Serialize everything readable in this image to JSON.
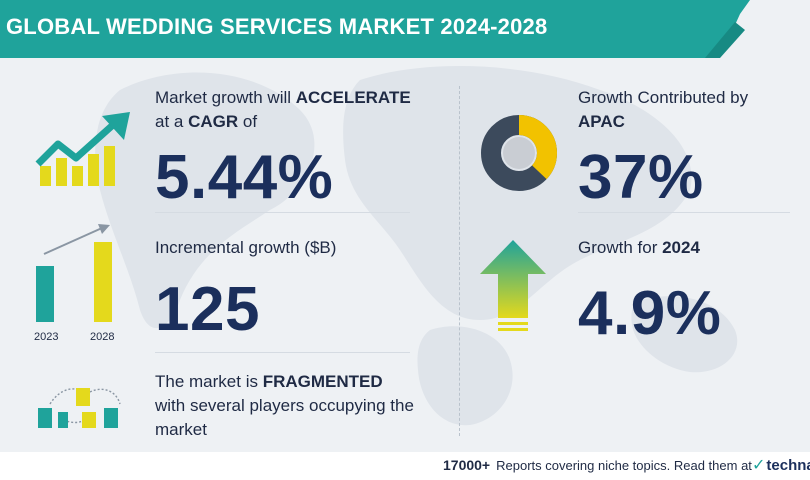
{
  "banner": {
    "title": "GLOBAL WEDDING SERVICES MARKET 2024-2028"
  },
  "cagr": {
    "text_prefix": "Market growth will ",
    "text_emphasis": "ACCELERATE",
    "text_line2_prefix": "at a ",
    "text_line2_emphasis": "CAGR",
    "text_line2_suffix": "  of",
    "value": "5.44%"
  },
  "incremental": {
    "label": "Incremental growth ($B)",
    "value": "125",
    "years": [
      "2023",
      "2028"
    ]
  },
  "market": {
    "text_prefix": "The market is ",
    "text_emphasis": "FRAGMENTED",
    "text_line2": "with several players occupying the",
    "text_line3": "market"
  },
  "region": {
    "label": "Growth Contributed by",
    "region_name": "APAC",
    "value": "37%",
    "share": 0.37
  },
  "year_growth": {
    "label_prefix": "Growth for  ",
    "year": "2024",
    "value": "4.9%"
  },
  "footer": {
    "count": "17000+",
    "text": "Reports covering niche topics. Read them at",
    "brand": "technav"
  },
  "colors": {
    "teal": "#1fa39b",
    "navy": "#1b2f5c",
    "yellow": "#e4d91c",
    "slate": "#3c4a5c",
    "gold": "#f2c200"
  },
  "icons": {
    "growth": "trend-arrow-icon",
    "bars": "bar-comparison-icon",
    "fragmented": "buildings-network-icon",
    "donut": "donut-chart-icon",
    "up_arrow": "up-arrow-icon"
  }
}
